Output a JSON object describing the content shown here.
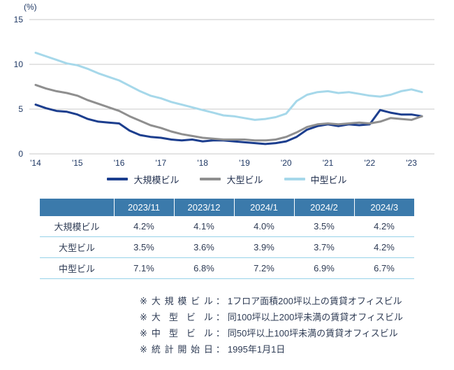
{
  "chart_data": {
    "type": "line",
    "title": "",
    "y_axis_label": "(%)",
    "ylim": [
      0,
      15
    ],
    "yticks": [
      0,
      5,
      10,
      15
    ],
    "xlim": [
      2013.85,
      2023.55
    ],
    "xticks": [
      2014,
      2015,
      2016,
      2017,
      2018,
      2019,
      2020,
      2021,
      2022,
      2023
    ],
    "xtick_labels": [
      "'14",
      "'15",
      "'16",
      "'17",
      "'18",
      "'19",
      "'20",
      "'21",
      "'22",
      "'23"
    ],
    "grid": "horizontal",
    "grid_color": "#c9c9c9",
    "legend_position": "bottom",
    "x": [
      2014.0,
      2014.25,
      2014.5,
      2014.75,
      2015.0,
      2015.25,
      2015.5,
      2015.75,
      2016.0,
      2016.25,
      2016.5,
      2016.75,
      2017.0,
      2017.25,
      2017.5,
      2017.75,
      2018.0,
      2018.25,
      2018.5,
      2018.75,
      2019.0,
      2019.25,
      2019.5,
      2019.75,
      2020.0,
      2020.25,
      2020.5,
      2020.75,
      2021.0,
      2021.25,
      2021.5,
      2021.75,
      2022.0,
      2022.25,
      2022.5,
      2022.75,
      2023.0,
      2023.25
    ],
    "series": [
      {
        "name": "大規模ビル",
        "color": "#1c3e8e",
        "width": 3,
        "values": [
          5.5,
          5.1,
          4.8,
          4.7,
          4.4,
          3.9,
          3.6,
          3.5,
          3.4,
          2.6,
          2.1,
          1.9,
          1.8,
          1.6,
          1.5,
          1.6,
          1.4,
          1.5,
          1.5,
          1.4,
          1.3,
          1.2,
          1.1,
          1.2,
          1.4,
          1.9,
          2.7,
          3.1,
          3.3,
          3.1,
          3.3,
          3.2,
          3.3,
          4.9,
          4.6,
          4.4,
          4.4,
          4.2
        ]
      },
      {
        "name": "大型ビル",
        "color": "#8f8f8f",
        "width": 3,
        "values": [
          7.7,
          7.3,
          7.0,
          6.8,
          6.5,
          6.0,
          5.6,
          5.2,
          4.8,
          4.2,
          3.7,
          3.2,
          2.9,
          2.5,
          2.2,
          2.0,
          1.8,
          1.7,
          1.6,
          1.6,
          1.6,
          1.5,
          1.5,
          1.6,
          1.9,
          2.4,
          3.0,
          3.3,
          3.4,
          3.3,
          3.4,
          3.5,
          3.4,
          3.6,
          4.0,
          3.9,
          3.8,
          4.2
        ]
      },
      {
        "name": "中型ビル",
        "color": "#a6d8ea",
        "width": 3,
        "values": [
          11.3,
          10.9,
          10.5,
          10.1,
          9.9,
          9.5,
          9.0,
          8.6,
          8.2,
          7.6,
          7.0,
          6.5,
          6.2,
          5.8,
          5.5,
          5.2,
          4.9,
          4.6,
          4.3,
          4.2,
          4.0,
          3.8,
          3.9,
          4.1,
          4.5,
          5.9,
          6.6,
          6.9,
          7.0,
          6.8,
          6.9,
          6.7,
          6.5,
          6.4,
          6.6,
          7.0,
          7.2,
          6.9
        ]
      }
    ]
  },
  "table": {
    "columns": [
      "",
      "2023/11",
      "2023/12",
      "2024/1",
      "2024/2",
      "2024/3"
    ],
    "rows": [
      {
        "label": "大規模ビル",
        "values": [
          "4.2%",
          "4.1%",
          "4.0%",
          "3.5%",
          "4.2%"
        ]
      },
      {
        "label": "大型ビル",
        "values": [
          "3.5%",
          "3.6%",
          "3.9%",
          "3.7%",
          "4.2%"
        ]
      },
      {
        "label": "中型ビル",
        "values": [
          "7.1%",
          "6.8%",
          "7.2%",
          "6.9%",
          "6.7%"
        ]
      }
    ],
    "header_bg": "#3b7aab",
    "border_color": "#96d2e9"
  },
  "notes": [
    {
      "marker": "※",
      "label": "大規模ビル",
      "separator": "：",
      "text": "1フロア面積200坪以上の賃貸オフィスビル"
    },
    {
      "marker": "※",
      "label": "大型ビル",
      "separator": "：",
      "text": "同100坪以上200坪未満の賃貸オフィスビル"
    },
    {
      "marker": "※",
      "label": "中型ビル",
      "separator": "：",
      "text": "同50坪以上100坪未満の賃貸オフィスビル"
    },
    {
      "marker": "※",
      "label": "統計開始日",
      "separator": "：",
      "text": "1995年1月1日"
    }
  ]
}
